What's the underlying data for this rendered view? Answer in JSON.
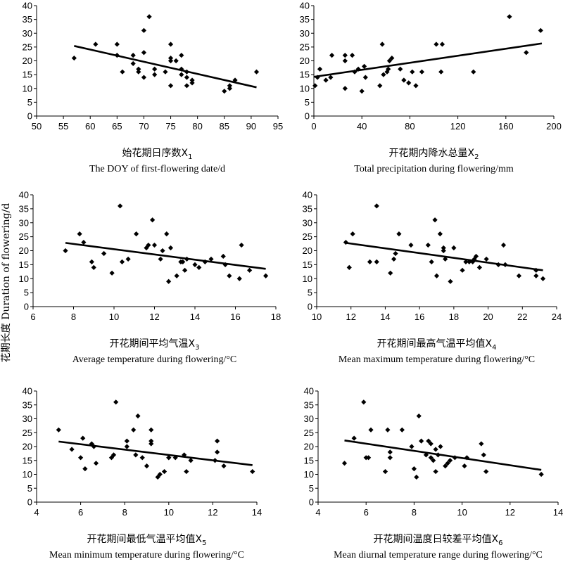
{
  "y_axis_label": "花期长度 Duration of flowering/d",
  "chart_data": [
    {
      "type": "scatter",
      "xlabel_cn": "始花期日序数",
      "xlabel_sub": "1",
      "xlabel_en": "The DOY of first-flowering date/d",
      "xlim": [
        50,
        95
      ],
      "xticks": [
        50,
        55,
        60,
        65,
        70,
        75,
        80,
        85,
        90,
        95
      ],
      "ylim": [
        0,
        40
      ],
      "yticks": [
        0,
        5,
        10,
        15,
        20,
        25,
        30,
        35,
        40
      ],
      "trendline": [
        [
          57,
          25.4
        ],
        [
          91,
          10.4
        ]
      ],
      "points": [
        [
          57,
          21
        ],
        [
          61,
          26
        ],
        [
          65,
          26
        ],
        [
          65,
          22
        ],
        [
          66,
          16
        ],
        [
          68,
          22
        ],
        [
          68,
          19
        ],
        [
          69,
          17
        ],
        [
          69,
          16
        ],
        [
          70,
          23
        ],
        [
          70,
          31
        ],
        [
          70,
          14
        ],
        [
          71,
          36
        ],
        [
          72,
          15
        ],
        [
          72,
          17
        ],
        [
          74,
          16
        ],
        [
          75,
          26
        ],
        [
          75,
          21
        ],
        [
          75,
          20
        ],
        [
          75,
          11
        ],
        [
          76,
          20
        ],
        [
          77,
          22
        ],
        [
          77,
          17
        ],
        [
          77,
          15
        ],
        [
          78,
          16
        ],
        [
          78,
          14
        ],
        [
          78,
          11
        ],
        [
          79,
          13
        ],
        [
          79,
          12
        ],
        [
          85,
          9
        ],
        [
          86,
          10
        ],
        [
          86,
          11
        ],
        [
          87,
          13
        ],
        [
          91,
          16
        ]
      ]
    },
    {
      "type": "scatter",
      "xlabel_cn": "开花期内降水总量",
      "xlabel_sub": "2",
      "xlabel_en": "Total precipitation during flowering/mm",
      "xlim": [
        0,
        200
      ],
      "xticks": [
        0,
        40,
        80,
        120,
        160,
        200
      ],
      "ylim": [
        0,
        40
      ],
      "yticks": [
        0,
        5,
        10,
        15,
        20,
        25,
        30,
        35,
        40
      ],
      "trendline": [
        [
          0,
          14.2
        ],
        [
          190,
          26.3
        ]
      ],
      "points": [
        [
          1,
          11
        ],
        [
          3,
          14
        ],
        [
          5,
          17
        ],
        [
          10,
          13
        ],
        [
          14,
          14
        ],
        [
          15,
          22
        ],
        [
          26,
          10
        ],
        [
          26,
          20
        ],
        [
          26,
          22
        ],
        [
          32,
          22
        ],
        [
          34,
          16
        ],
        [
          37,
          17
        ],
        [
          40,
          9
        ],
        [
          42,
          18
        ],
        [
          43,
          14
        ],
        [
          55,
          11
        ],
        [
          57,
          26
        ],
        [
          58,
          15
        ],
        [
          61,
          16
        ],
        [
          62,
          17
        ],
        [
          63,
          20
        ],
        [
          65,
          21
        ],
        [
          72,
          17
        ],
        [
          75,
          13
        ],
        [
          79,
          12
        ],
        [
          82,
          16
        ],
        [
          85,
          11
        ],
        [
          90,
          16
        ],
        [
          102,
          26
        ],
        [
          106,
          16
        ],
        [
          107,
          26
        ],
        [
          133,
          16
        ],
        [
          163,
          36
        ],
        [
          177,
          23
        ],
        [
          189,
          31
        ]
      ]
    },
    {
      "type": "scatter",
      "xlabel_cn": "开花期间平均气温",
      "xlabel_sub": "3",
      "xlabel_en": "Average temperature during flowering/°C",
      "xlim": [
        6,
        18
      ],
      "xticks": [
        6,
        8,
        10,
        12,
        14,
        16,
        18
      ],
      "ylim": [
        0,
        40
      ],
      "yticks": [
        0,
        5,
        10,
        15,
        20,
        25,
        30,
        35,
        40
      ],
      "trendline": [
        [
          7.6,
          22.8
        ],
        [
          17.5,
          13.5
        ]
      ],
      "points": [
        [
          7.6,
          20
        ],
        [
          8.3,
          26
        ],
        [
          8.5,
          23
        ],
        [
          8.9,
          16
        ],
        [
          9.0,
          14
        ],
        [
          9.5,
          19
        ],
        [
          9.9,
          12
        ],
        [
          10.3,
          36
        ],
        [
          10.4,
          16
        ],
        [
          10.7,
          17
        ],
        [
          11.1,
          26
        ],
        [
          11.6,
          21
        ],
        [
          11.7,
          22
        ],
        [
          11.9,
          31
        ],
        [
          12.0,
          22
        ],
        [
          12.3,
          17
        ],
        [
          12.4,
          20
        ],
        [
          12.6,
          26
        ],
        [
          12.8,
          21
        ],
        [
          12.7,
          9
        ],
        [
          13.1,
          11
        ],
        [
          13.3,
          16
        ],
        [
          13.4,
          16
        ],
        [
          13.5,
          13
        ],
        [
          13.6,
          17
        ],
        [
          14.0,
          15
        ],
        [
          14.2,
          14
        ],
        [
          14.5,
          16
        ],
        [
          14.8,
          17
        ],
        [
          15.4,
          18
        ],
        [
          15.5,
          15
        ],
        [
          15.7,
          11
        ],
        [
          16.2,
          10
        ],
        [
          16.3,
          22
        ],
        [
          16.7,
          13
        ],
        [
          17.5,
          11
        ]
      ]
    },
    {
      "type": "scatter",
      "xlabel_cn": "开花期间最高气温平均值",
      "xlabel_sub": "4",
      "xlabel_en": "Mean maximum temperature during flowering/°C",
      "xlim": [
        10,
        24
      ],
      "xticks": [
        10,
        12,
        14,
        16,
        18,
        20,
        22,
        24
      ],
      "ylim": [
        0,
        40
      ],
      "yticks": [
        0,
        5,
        10,
        15,
        20,
        25,
        30,
        35,
        40
      ],
      "trendline": [
        [
          11.7,
          22.8
        ],
        [
          23.2,
          13.0
        ]
      ],
      "points": [
        [
          11.7,
          23
        ],
        [
          11.9,
          14
        ],
        [
          12.1,
          26
        ],
        [
          13.1,
          16
        ],
        [
          13.5,
          36
        ],
        [
          13.5,
          16
        ],
        [
          14.3,
          12
        ],
        [
          14.5,
          17
        ],
        [
          14.6,
          19
        ],
        [
          14.8,
          26
        ],
        [
          15.5,
          22
        ],
        [
          16.5,
          22
        ],
        [
          16.7,
          16
        ],
        [
          16.9,
          31
        ],
        [
          17.0,
          11
        ],
        [
          17.2,
          26
        ],
        [
          17.4,
          21
        ],
        [
          17.4,
          20
        ],
        [
          17.5,
          17
        ],
        [
          17.8,
          9
        ],
        [
          18.0,
          21
        ],
        [
          18.5,
          13
        ],
        [
          18.7,
          16
        ],
        [
          18.9,
          16
        ],
        [
          19.1,
          16
        ],
        [
          19.2,
          17
        ],
        [
          19.3,
          18
        ],
        [
          19.5,
          14
        ],
        [
          19.9,
          17
        ],
        [
          20.6,
          15
        ],
        [
          20.9,
          22
        ],
        [
          21.0,
          15
        ],
        [
          21.8,
          11
        ],
        [
          22.8,
          13
        ],
        [
          22.8,
          11
        ],
        [
          23.2,
          10
        ]
      ]
    },
    {
      "type": "scatter",
      "xlabel_cn": "开花期间最低气温平均值",
      "xlabel_sub": "5",
      "xlabel_en": "Mean minimum temperature during flowering/°C",
      "xlim": [
        4,
        14
      ],
      "xticks": [
        4,
        6,
        8,
        10,
        12,
        14
      ],
      "ylim": [
        0,
        40
      ],
      "yticks": [
        0,
        5,
        10,
        15,
        20,
        25,
        30,
        35,
        40
      ],
      "trendline": [
        [
          5.0,
          21.8
        ],
        [
          13.8,
          13.3
        ]
      ],
      "points": [
        [
          5.0,
          26
        ],
        [
          5.6,
          19
        ],
        [
          6.0,
          16
        ],
        [
          6.1,
          23
        ],
        [
          6.2,
          12
        ],
        [
          6.5,
          21
        ],
        [
          6.6,
          20
        ],
        [
          6.7,
          14
        ],
        [
          7.4,
          16
        ],
        [
          7.5,
          17
        ],
        [
          7.6,
          36
        ],
        [
          8.1,
          20
        ],
        [
          8.1,
          22
        ],
        [
          8.4,
          26
        ],
        [
          8.5,
          17
        ],
        [
          8.6,
          31
        ],
        [
          8.8,
          16
        ],
        [
          9.0,
          13
        ],
        [
          9.2,
          26
        ],
        [
          9.2,
          21
        ],
        [
          9.2,
          22
        ],
        [
          9.5,
          9
        ],
        [
          9.6,
          10
        ],
        [
          9.8,
          11
        ],
        [
          10.0,
          16
        ],
        [
          10.0,
          16
        ],
        [
          10.3,
          16
        ],
        [
          10.7,
          17
        ],
        [
          10.8,
          11
        ],
        [
          11.0,
          15
        ],
        [
          12.1,
          15
        ],
        [
          12.2,
          22
        ],
        [
          12.2,
          18
        ],
        [
          12.5,
          13
        ],
        [
          13.8,
          11
        ]
      ]
    },
    {
      "type": "scatter",
      "xlabel_cn": "开花期间温度日较差平均值",
      "xlabel_sub": "6",
      "xlabel_en": "Mean diurnal temperature range during flowering/°C",
      "xlim": [
        4,
        14
      ],
      "xticks": [
        4,
        6,
        8,
        10,
        12,
        14
      ],
      "ylim": [
        0,
        40
      ],
      "yticks": [
        0,
        5,
        10,
        15,
        20,
        25,
        30,
        35,
        40
      ],
      "trendline": [
        [
          5.1,
          22.2
        ],
        [
          13.3,
          11.6
        ]
      ],
      "points": [
        [
          5.1,
          14
        ],
        [
          5.5,
          23
        ],
        [
          5.9,
          36
        ],
        [
          6.0,
          16
        ],
        [
          6.1,
          16
        ],
        [
          6.2,
          26
        ],
        [
          6.8,
          11
        ],
        [
          6.9,
          26
        ],
        [
          7.0,
          18
        ],
        [
          7.0,
          16
        ],
        [
          7.5,
          26
        ],
        [
          7.9,
          20
        ],
        [
          8.0,
          12
        ],
        [
          8.1,
          9
        ],
        [
          8.2,
          31
        ],
        [
          8.3,
          22
        ],
        [
          8.5,
          17
        ],
        [
          8.6,
          22
        ],
        [
          8.7,
          21
        ],
        [
          8.7,
          16
        ],
        [
          8.8,
          15
        ],
        [
          8.9,
          19
        ],
        [
          8.9,
          11
        ],
        [
          9.0,
          17
        ],
        [
          9.1,
          20
        ],
        [
          9.3,
          13
        ],
        [
          9.4,
          14
        ],
        [
          9.5,
          15
        ],
        [
          9.7,
          16
        ],
        [
          10.1,
          13
        ],
        [
          10.2,
          16
        ],
        [
          10.8,
          21
        ],
        [
          10.9,
          17
        ],
        [
          11.0,
          11
        ],
        [
          13.3,
          10
        ]
      ]
    }
  ]
}
